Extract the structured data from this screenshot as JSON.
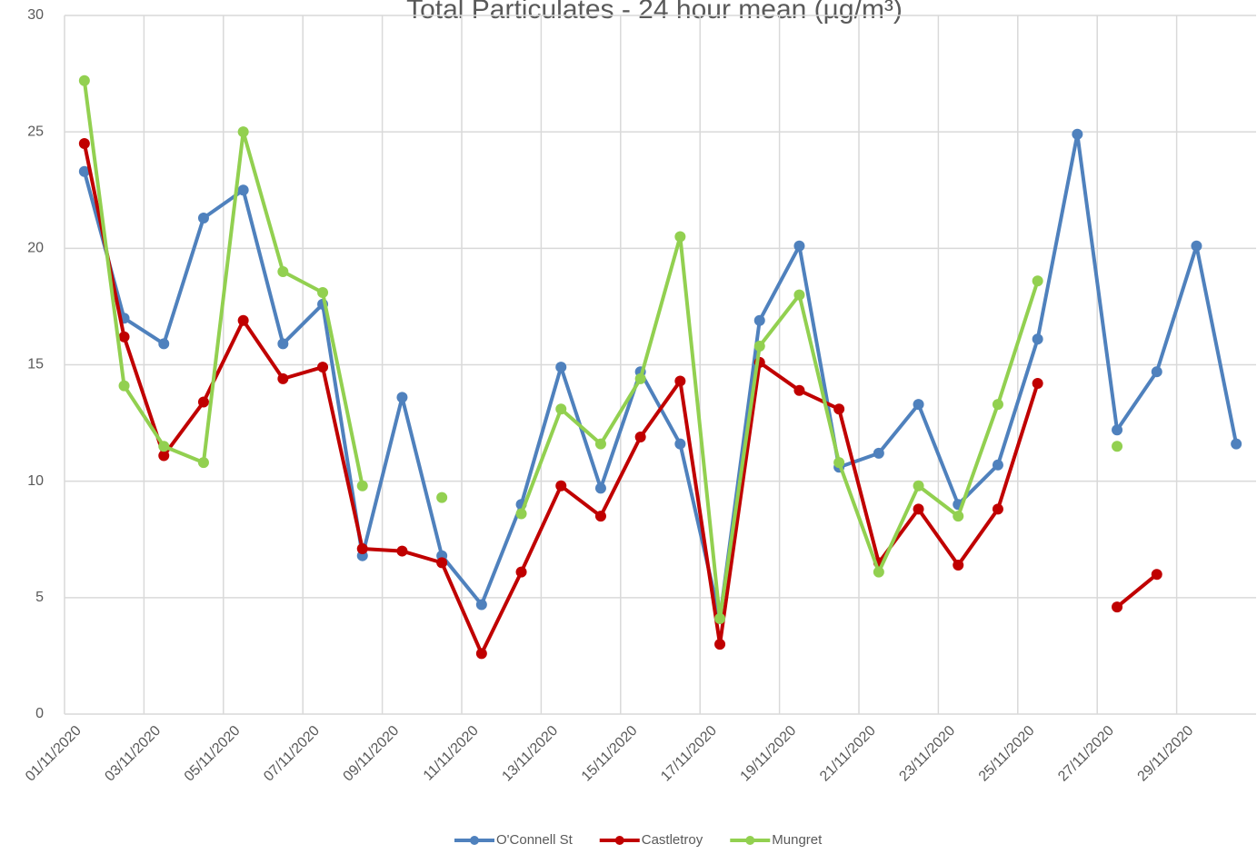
{
  "chart_data": {
    "type": "line",
    "title": "Total Particulates - 24 hour mean (µg/m³)",
    "categories": [
      "01/11/2020",
      null,
      "03/11/2020",
      null,
      "05/11/2020",
      null,
      "07/11/2020",
      null,
      "09/11/2020",
      null,
      "11/11/2020",
      null,
      "13/11/2020",
      null,
      "15/11/2020",
      null,
      "17/11/2020",
      null,
      "19/11/2020",
      null,
      "21/11/2020",
      null,
      "23/11/2020",
      null,
      "25/11/2020",
      null,
      "27/11/2020",
      null,
      "29/11/2020",
      null
    ],
    "series": [
      {
        "name": "O'Connell St",
        "color": "#4f81bd",
        "values": [
          23.3,
          17.0,
          15.9,
          21.3,
          22.5,
          15.9,
          17.6,
          6.8,
          13.6,
          6.8,
          4.7,
          9.0,
          14.9,
          9.7,
          14.7,
          11.6,
          4.1,
          16.9,
          20.1,
          10.6,
          11.2,
          13.3,
          9.0,
          10.7,
          16.1,
          24.9,
          12.2,
          14.7,
          20.1,
          11.6
        ]
      },
      {
        "name": "Castletroy",
        "color": "#c00000",
        "values": [
          24.5,
          16.2,
          11.1,
          13.4,
          16.9,
          14.4,
          14.9,
          7.1,
          7.0,
          6.5,
          2.6,
          6.1,
          9.8,
          8.5,
          11.9,
          14.3,
          3.0,
          15.1,
          13.9,
          13.1,
          6.5,
          8.8,
          6.4,
          8.8,
          14.2,
          null,
          4.6,
          6.0,
          null,
          null
        ]
      },
      {
        "name": "Mungret",
        "color": "#92d050",
        "values": [
          27.2,
          14.1,
          11.5,
          10.8,
          25.0,
          19.0,
          18.1,
          9.8,
          null,
          9.3,
          null,
          8.6,
          13.1,
          11.6,
          14.4,
          20.5,
          4.1,
          15.8,
          18.0,
          10.8,
          6.1,
          9.8,
          8.5,
          13.3,
          18.6,
          null,
          11.5,
          null,
          null,
          null
        ]
      }
    ],
    "ylim": [
      0,
      30
    ],
    "yticks": [
      0,
      5,
      10,
      15,
      20,
      25,
      30
    ],
    "grid": true,
    "legend": "bottom"
  }
}
